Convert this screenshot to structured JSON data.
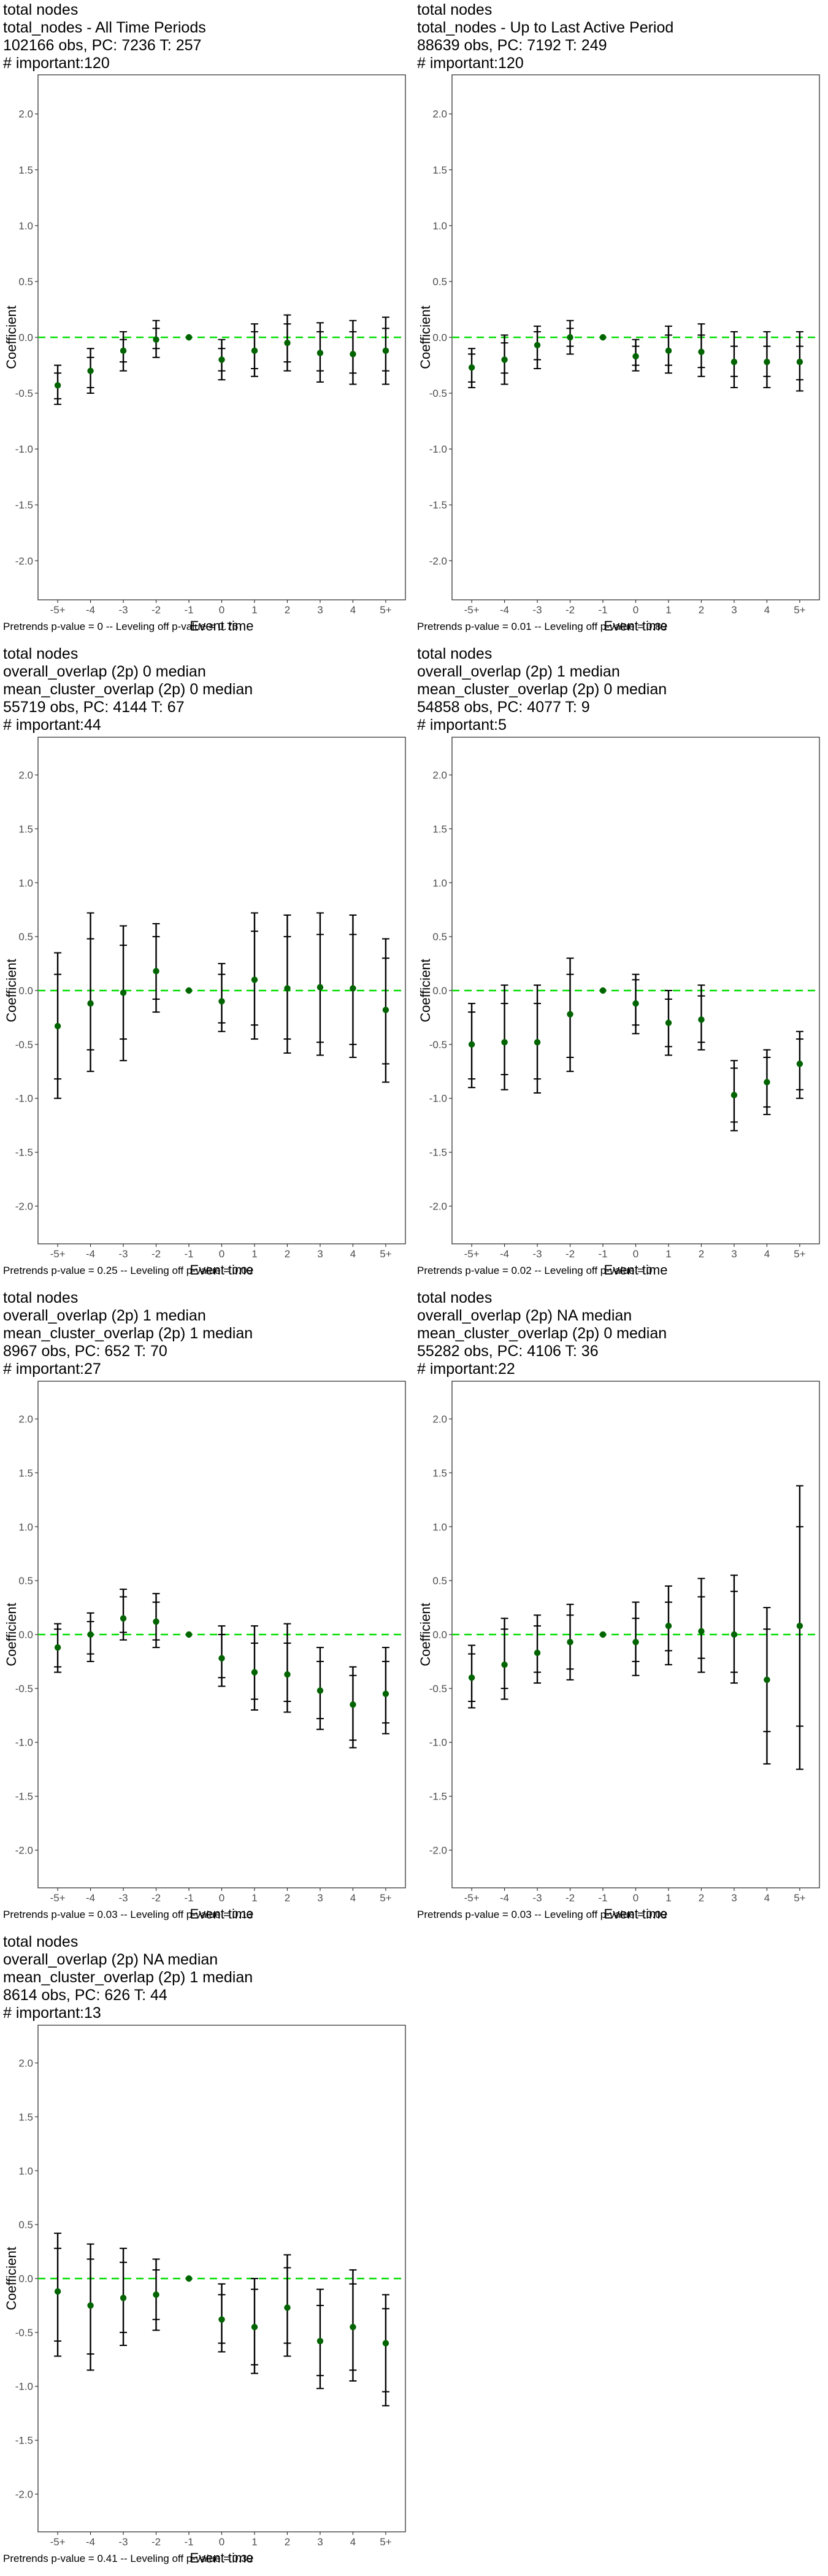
{
  "page": {
    "figure_count": 7,
    "colors": {
      "zero_line": "#00dd00",
      "point": "#006400",
      "bar": "#000000",
      "panel_border": "#333333"
    }
  },
  "chart_data": [
    {
      "type": "scatter",
      "title_lines": [
        "total nodes",
        "total_nodes - All Time Periods",
        "102166 obs, PC: 7236 T: 257",
        "# important:120"
      ],
      "xlabel": "Event time",
      "ylabel": "Coefficient",
      "categories": [
        "-5+",
        "-4",
        "-3",
        "-2",
        "-1",
        "0",
        "1",
        "2",
        "3",
        "4",
        "5+"
      ],
      "ylim": [
        -2.35,
        2.35
      ],
      "yticks": [
        -2.0,
        -1.5,
        -1.0,
        -0.5,
        0.0,
        0.5,
        1.0,
        1.5,
        2.0
      ],
      "footer": "Pretrends p-value = 0 -- Leveling off p-value = 0.76",
      "estimate": [
        -0.43,
        -0.3,
        -0.12,
        -0.02,
        0.0,
        -0.2,
        -0.12,
        -0.05,
        -0.14,
        -0.15,
        -0.12
      ],
      "ci_outer": [
        [
          -0.6,
          -0.25
        ],
        [
          -0.5,
          -0.1
        ],
        [
          -0.3,
          0.05
        ],
        [
          -0.18,
          0.15
        ],
        [
          0.0,
          0.0
        ],
        [
          -0.38,
          -0.02
        ],
        [
          -0.35,
          0.12
        ],
        [
          -0.3,
          0.2
        ],
        [
          -0.4,
          0.13
        ],
        [
          -0.42,
          0.15
        ],
        [
          -0.42,
          0.18
        ]
      ],
      "ci_inner": [
        [
          -0.55,
          -0.32
        ],
        [
          -0.45,
          -0.18
        ],
        [
          -0.22,
          -0.02
        ],
        [
          -0.1,
          0.08
        ],
        [
          0.0,
          0.0
        ],
        [
          -0.3,
          -0.1
        ],
        [
          -0.28,
          0.05
        ],
        [
          -0.22,
          0.12
        ],
        [
          -0.3,
          0.05
        ],
        [
          -0.32,
          0.05
        ],
        [
          -0.3,
          0.08
        ]
      ]
    },
    {
      "type": "scatter",
      "title_lines": [
        "total nodes",
        "total_nodes - Up to Last Active Period",
        "88639 obs, PC: 7192 T: 249",
        "# important:120"
      ],
      "xlabel": "Event time",
      "ylabel": "Coefficient",
      "categories": [
        "-5+",
        "-4",
        "-3",
        "-2",
        "-1",
        "0",
        "1",
        "2",
        "3",
        "4",
        "5+"
      ],
      "ylim": [
        -2.35,
        2.35
      ],
      "yticks": [
        -2.0,
        -1.5,
        -1.0,
        -0.5,
        0.0,
        0.5,
        1.0,
        1.5,
        2.0
      ],
      "footer": "Pretrends p-value = 0.01 -- Leveling off p-value = 0.89",
      "estimate": [
        -0.27,
        -0.2,
        -0.07,
        0.0,
        0.0,
        -0.17,
        -0.12,
        -0.13,
        -0.22,
        -0.22,
        -0.22
      ],
      "ci_outer": [
        [
          -0.45,
          -0.1
        ],
        [
          -0.42,
          0.02
        ],
        [
          -0.28,
          0.1
        ],
        [
          -0.15,
          0.15
        ],
        [
          0.0,
          0.0
        ],
        [
          -0.3,
          -0.02
        ],
        [
          -0.32,
          0.1
        ],
        [
          -0.35,
          0.12
        ],
        [
          -0.45,
          0.05
        ],
        [
          -0.45,
          0.05
        ],
        [
          -0.48,
          0.05
        ]
      ],
      "ci_inner": [
        [
          -0.4,
          -0.15
        ],
        [
          -0.32,
          -0.05
        ],
        [
          -0.2,
          0.05
        ],
        [
          -0.08,
          0.08
        ],
        [
          0.0,
          0.0
        ],
        [
          -0.25,
          -0.08
        ],
        [
          -0.25,
          0.02
        ],
        [
          -0.27,
          0.02
        ],
        [
          -0.35,
          -0.08
        ],
        [
          -0.35,
          -0.08
        ],
        [
          -0.38,
          -0.08
        ]
      ]
    },
    {
      "type": "scatter",
      "title_lines": [
        "total nodes",
        "overall_overlap (2p) 0 median",
        "mean_cluster_overlap (2p) 0 median",
        "55719 obs, PC: 4144 T: 67",
        "# important:44"
      ],
      "xlabel": "Event time",
      "ylabel": "Coefficient",
      "categories": [
        "-5+",
        "-4",
        "-3",
        "-2",
        "-1",
        "0",
        "1",
        "2",
        "3",
        "4",
        "5+"
      ],
      "ylim": [
        -2.35,
        2.35
      ],
      "yticks": [
        -2.0,
        -1.5,
        -1.0,
        -0.5,
        0.0,
        0.5,
        1.0,
        1.5,
        2.0
      ],
      "footer": "Pretrends p-value = 0.25 -- Leveling off p-value = 0.09",
      "estimate": [
        -0.33,
        -0.12,
        -0.02,
        0.18,
        0.0,
        -0.1,
        0.1,
        0.02,
        0.03,
        0.02,
        -0.18
      ],
      "ci_outer": [
        [
          -1.0,
          0.35
        ],
        [
          -0.75,
          0.72
        ],
        [
          -0.65,
          0.6
        ],
        [
          -0.2,
          0.62
        ],
        [
          0.0,
          0.0
        ],
        [
          -0.38,
          0.25
        ],
        [
          -0.45,
          0.72
        ],
        [
          -0.58,
          0.7
        ],
        [
          -0.6,
          0.72
        ],
        [
          -0.62,
          0.7
        ],
        [
          -0.85,
          0.48
        ]
      ],
      "ci_inner": [
        [
          -0.82,
          0.15
        ],
        [
          -0.55,
          0.48
        ],
        [
          -0.45,
          0.42
        ],
        [
          -0.08,
          0.5
        ],
        [
          0.0,
          0.0
        ],
        [
          -0.3,
          0.15
        ],
        [
          -0.32,
          0.55
        ],
        [
          -0.45,
          0.5
        ],
        [
          -0.48,
          0.52
        ],
        [
          -0.5,
          0.52
        ],
        [
          -0.68,
          0.3
        ]
      ]
    },
    {
      "type": "scatter",
      "title_lines": [
        "total nodes",
        "overall_overlap (2p) 1 median",
        "mean_cluster_overlap (2p) 0 median",
        "54858 obs, PC: 4077 T: 9",
        "# important:5"
      ],
      "xlabel": "Event time",
      "ylabel": "Coefficient",
      "categories": [
        "-5+",
        "-4",
        "-3",
        "-2",
        "-1",
        "0",
        "1",
        "2",
        "3",
        "4",
        "5+"
      ],
      "ylim": [
        -2.35,
        2.35
      ],
      "yticks": [
        -2.0,
        -1.5,
        -1.0,
        -0.5,
        0.0,
        0.5,
        1.0,
        1.5,
        2.0
      ],
      "footer": "Pretrends p-value = 0.02 -- Leveling off p-value = 0",
      "estimate": [
        -0.5,
        -0.48,
        -0.48,
        -0.22,
        0.0,
        -0.12,
        -0.3,
        -0.27,
        -0.97,
        -0.85,
        -0.68
      ],
      "ci_outer": [
        [
          -0.9,
          -0.12
        ],
        [
          -0.92,
          0.05
        ],
        [
          -0.95,
          0.05
        ],
        [
          -0.75,
          0.3
        ],
        [
          0.0,
          0.0
        ],
        [
          -0.4,
          0.15
        ],
        [
          -0.6,
          0.0
        ],
        [
          -0.55,
          0.05
        ],
        [
          -1.3,
          -0.65
        ],
        [
          -1.15,
          -0.55
        ],
        [
          -1.0,
          -0.38
        ]
      ],
      "ci_inner": [
        [
          -0.82,
          -0.2
        ],
        [
          -0.78,
          -0.12
        ],
        [
          -0.82,
          -0.12
        ],
        [
          -0.62,
          0.15
        ],
        [
          0.0,
          0.0
        ],
        [
          -0.32,
          0.1
        ],
        [
          -0.52,
          -0.08
        ],
        [
          -0.48,
          -0.05
        ],
        [
          -1.22,
          -0.72
        ],
        [
          -1.08,
          -0.62
        ],
        [
          -0.92,
          -0.45
        ]
      ]
    },
    {
      "type": "scatter",
      "title_lines": [
        "total nodes",
        "overall_overlap (2p) 1 median",
        "mean_cluster_overlap (2p) 1 median",
        "8967 obs, PC: 652 T: 70",
        "# important:27"
      ],
      "xlabel": "Event time",
      "ylabel": "Coefficient",
      "categories": [
        "-5+",
        "-4",
        "-3",
        "-2",
        "-1",
        "0",
        "1",
        "2",
        "3",
        "4",
        "5+"
      ],
      "ylim": [
        -2.35,
        2.35
      ],
      "yticks": [
        -2.0,
        -1.5,
        -1.0,
        -0.5,
        0.0,
        0.5,
        1.0,
        1.5,
        2.0
      ],
      "footer": "Pretrends p-value = 0.03 -- Leveling off p-value = 0.13",
      "estimate": [
        -0.12,
        0.0,
        0.15,
        0.12,
        0.0,
        -0.22,
        -0.35,
        -0.37,
        -0.52,
        -0.65,
        -0.55
      ],
      "ci_outer": [
        [
          -0.35,
          0.1
        ],
        [
          -0.25,
          0.2
        ],
        [
          -0.05,
          0.42
        ],
        [
          -0.12,
          0.38
        ],
        [
          0.0,
          0.0
        ],
        [
          -0.48,
          0.08
        ],
        [
          -0.7,
          0.08
        ],
        [
          -0.72,
          0.1
        ],
        [
          -0.88,
          -0.12
        ],
        [
          -1.05,
          -0.3
        ],
        [
          -0.92,
          -0.12
        ]
      ],
      "ci_inner": [
        [
          -0.3,
          0.05
        ],
        [
          -0.18,
          0.12
        ],
        [
          0.02,
          0.35
        ],
        [
          -0.05,
          0.3
        ],
        [
          0.0,
          0.0
        ],
        [
          -0.4,
          0.0
        ],
        [
          -0.6,
          -0.08
        ],
        [
          -0.62,
          -0.08
        ],
        [
          -0.78,
          -0.25
        ],
        [
          -0.98,
          -0.38
        ],
        [
          -0.82,
          -0.25
        ]
      ]
    },
    {
      "type": "scatter",
      "title_lines": [
        "total nodes",
        "overall_overlap (2p) NA median",
        "mean_cluster_overlap (2p) 0 median",
        "55282 obs, PC: 4106 T: 36",
        "# important:22"
      ],
      "xlabel": "Event time",
      "ylabel": "Coefficient",
      "categories": [
        "-5+",
        "-4",
        "-3",
        "-2",
        "-1",
        "0",
        "1",
        "2",
        "3",
        "4",
        "5+"
      ],
      "ylim": [
        -2.35,
        2.35
      ],
      "yticks": [
        -2.0,
        -1.5,
        -1.0,
        -0.5,
        0.0,
        0.5,
        1.0,
        1.5,
        2.0
      ],
      "footer": "Pretrends p-value = 0.03 -- Leveling off p-value = 0.09",
      "estimate": [
        -0.4,
        -0.28,
        -0.17,
        -0.07,
        0.0,
        -0.07,
        0.08,
        0.03,
        0.0,
        -0.42,
        0.08
      ],
      "ci_outer": [
        [
          -0.68,
          -0.1
        ],
        [
          -0.6,
          0.15
        ],
        [
          -0.45,
          0.18
        ],
        [
          -0.42,
          0.28
        ],
        [
          0.0,
          0.0
        ],
        [
          -0.38,
          0.3
        ],
        [
          -0.28,
          0.45
        ],
        [
          -0.35,
          0.52
        ],
        [
          -0.45,
          0.55
        ],
        [
          -1.2,
          0.25
        ],
        [
          -1.25,
          1.38
        ]
      ],
      "ci_inner": [
        [
          -0.62,
          -0.18
        ],
        [
          -0.5,
          0.05
        ],
        [
          -0.35,
          0.08
        ],
        [
          -0.32,
          0.18
        ],
        [
          0.0,
          0.0
        ],
        [
          -0.25,
          0.15
        ],
        [
          -0.15,
          0.3
        ],
        [
          -0.22,
          0.35
        ],
        [
          -0.35,
          0.4
        ],
        [
          -0.9,
          0.05
        ],
        [
          -0.85,
          1.0
        ]
      ]
    },
    {
      "type": "scatter",
      "title_lines": [
        "total nodes",
        "overall_overlap (2p) NA median",
        "mean_cluster_overlap (2p) 1 median",
        "8614 obs, PC: 626 T: 44",
        "# important:13"
      ],
      "xlabel": "Event time",
      "ylabel": "Coefficient",
      "categories": [
        "-5+",
        "-4",
        "-3",
        "-2",
        "-1",
        "0",
        "1",
        "2",
        "3",
        "4",
        "5+"
      ],
      "ylim": [
        -2.35,
        2.35
      ],
      "yticks": [
        -2.0,
        -1.5,
        -1.0,
        -0.5,
        0.0,
        0.5,
        1.0,
        1.5,
        2.0
      ],
      "footer": "Pretrends p-value = 0.41 -- Leveling off p-value = 0.39",
      "estimate": [
        -0.12,
        -0.25,
        -0.18,
        -0.15,
        0.0,
        -0.38,
        -0.45,
        -0.27,
        -0.58,
        -0.45,
        -0.6
      ],
      "ci_outer": [
        [
          -0.72,
          0.42
        ],
        [
          -0.85,
          0.32
        ],
        [
          -0.62,
          0.28
        ],
        [
          -0.48,
          0.18
        ],
        [
          0.0,
          0.0
        ],
        [
          -0.68,
          -0.05
        ],
        [
          -0.88,
          0.0
        ],
        [
          -0.72,
          0.22
        ],
        [
          -1.02,
          -0.1
        ],
        [
          -0.95,
          0.08
        ],
        [
          -1.18,
          -0.15
        ]
      ],
      "ci_inner": [
        [
          -0.58,
          0.28
        ],
        [
          -0.7,
          0.18
        ],
        [
          -0.5,
          0.15
        ],
        [
          -0.38,
          0.08
        ],
        [
          0.0,
          0.0
        ],
        [
          -0.6,
          -0.15
        ],
        [
          -0.8,
          -0.1
        ],
        [
          -0.6,
          0.1
        ],
        [
          -0.9,
          -0.25
        ],
        [
          -0.85,
          -0.05
        ],
        [
          -1.05,
          -0.28
        ]
      ]
    }
  ]
}
